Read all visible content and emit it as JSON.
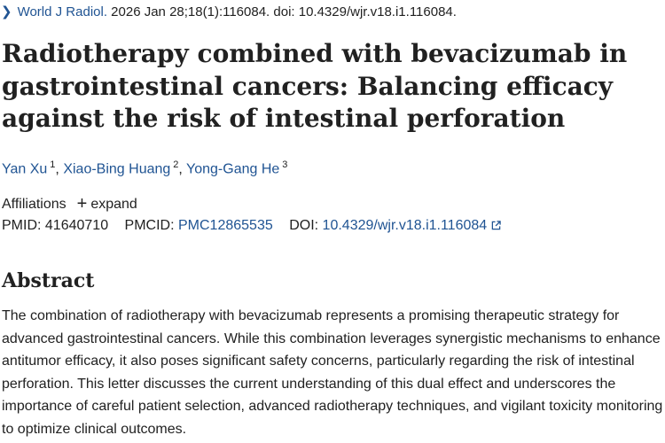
{
  "citation": {
    "journal": "World J Radiol.",
    "details": " 2026 Jan 28;18(1):116084. doi: 10.4329/wjr.v18.i1.116084."
  },
  "title": "Radiotherapy combined with bevacizumab in gastrointestinal cancers: Balancing efficacy against the risk of intestinal perforation",
  "authors": [
    {
      "name": "Yan Xu",
      "affil": "1"
    },
    {
      "name": "Xiao-Bing Huang",
      "affil": "2"
    },
    {
      "name": "Yong-Gang He",
      "affil": "3"
    }
  ],
  "author_separator": ", ",
  "affiliations": {
    "label": "Affiliations",
    "toggle": "expand"
  },
  "identifiers": {
    "pmid_label": "PMID:",
    "pmid": "41640710",
    "pmcid_label": "PMCID:",
    "pmcid": "PMC12865535",
    "doi_label": "DOI:",
    "doi": "10.4329/wjr.v18.i1.116084"
  },
  "abstract": {
    "heading": "Abstract",
    "text": "The combination of radiotherapy with bevacizumab represents a promising therapeutic strategy for advanced gastrointestinal cancers. While this combination leverages synergistic mechanisms to enhance antitumor efficacy, it also poses significant safety concerns, particularly regarding the risk of intestinal perforation. This letter discusses the current understanding of this dual effect and underscores the importance of careful patient selection, advanced radiotherapy techniques, and vigilant toxicity monitoring to optimize clinical outcomes."
  },
  "icons": {
    "citation_toggle": "chevron-right-icon",
    "expand": "plus-icon",
    "doi_link": "external-link-icon"
  },
  "colors": {
    "link": "#205493",
    "text": "#212121"
  }
}
